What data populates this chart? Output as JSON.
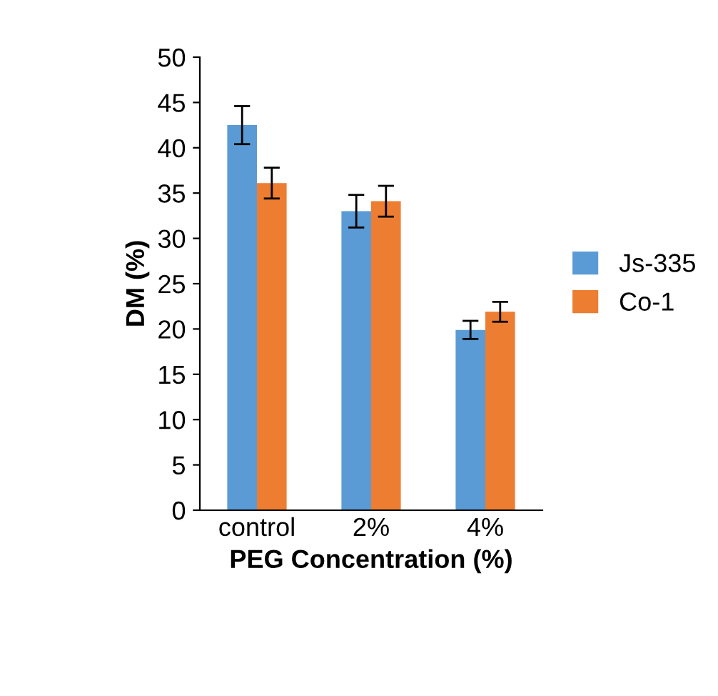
{
  "chart_data": {
    "type": "bar",
    "xlabel": "PEG Concentration (%)",
    "ylabel": "DM (%)",
    "categories": [
      "control",
      "2%",
      "4%"
    ],
    "series": [
      {
        "name": "Js-335",
        "color": "#5b9bd5",
        "values": [
          42.5,
          33.0,
          19.9
        ],
        "errors": [
          2.1,
          1.8,
          1.0
        ]
      },
      {
        "name": "Co-1",
        "color": "#ed7d31",
        "values": [
          36.1,
          34.1,
          21.9
        ],
        "errors": [
          1.7,
          1.7,
          1.1
        ]
      }
    ],
    "ylim": [
      0,
      50
    ],
    "yticks": [
      0,
      5,
      10,
      15,
      20,
      25,
      30,
      35,
      40,
      45,
      50
    ],
    "grid": false,
    "legend": "right"
  }
}
